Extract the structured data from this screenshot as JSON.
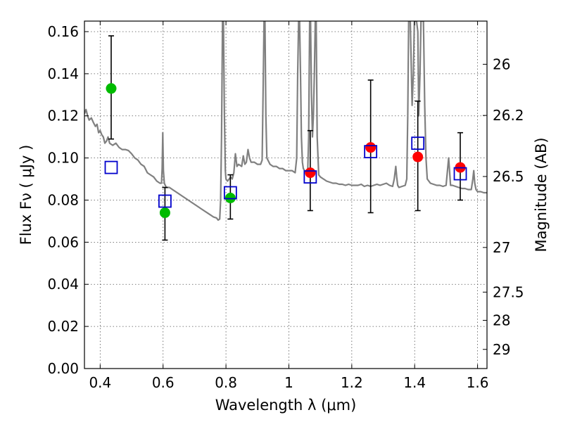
{
  "chart_data": {
    "type": "scatter",
    "xlabel": "Wavelength  λ (μm)",
    "ylabel": "Flux  Fν  ( μJy )",
    "ylabel_right": "Magnitude (AB)",
    "xlim": [
      0.35,
      1.63
    ],
    "ylim": [
      0.0,
      0.165
    ],
    "grid": true,
    "x_ticks": [
      {
        "value": 0.4,
        "label": "0.4"
      },
      {
        "value": 0.6,
        "label": "0.6"
      },
      {
        "value": 0.8,
        "label": "0.8"
      },
      {
        "value": 1.0,
        "label": "1"
      },
      {
        "value": 1.2,
        "label": "1.2"
      },
      {
        "value": 1.4,
        "label": "1.4"
      },
      {
        "value": 1.6,
        "label": "1.6"
      }
    ],
    "y_ticks": [
      {
        "value": 0.0,
        "label": "0.00"
      },
      {
        "value": 0.02,
        "label": "0.02"
      },
      {
        "value": 0.04,
        "label": "0.04"
      },
      {
        "value": 0.06,
        "label": "0.06"
      },
      {
        "value": 0.08,
        "label": "0.08"
      },
      {
        "value": 0.1,
        "label": "0.10"
      },
      {
        "value": 0.12,
        "label": "0.12"
      },
      {
        "value": 0.14,
        "label": "0.14"
      },
      {
        "value": 0.16,
        "label": "0.16"
      }
    ],
    "right_ticks": [
      {
        "flux": 0.1445,
        "label": "26"
      },
      {
        "flux": 0.1202,
        "label": "26.2"
      },
      {
        "flux": 0.0912,
        "label": "26.5"
      },
      {
        "flux": 0.0575,
        "label": "27"
      },
      {
        "flux": 0.0363,
        "label": "27.5"
      },
      {
        "flux": 0.0229,
        "label": "28"
      },
      {
        "flux": 0.0091,
        "label": "29"
      }
    ],
    "series": [
      {
        "marker": "circle",
        "color": "#00bb00",
        "points": [
          {
            "x": 0.435,
            "y": 0.133,
            "ylo": 0.109,
            "yhi": 0.158
          },
          {
            "x": 0.606,
            "y": 0.074,
            "ylo": 0.061,
            "yhi": 0.086
          },
          {
            "x": 0.814,
            "y": 0.081,
            "ylo": 0.071,
            "yhi": 0.092
          }
        ]
      },
      {
        "marker": "circle",
        "color": "#ff0000",
        "points": [
          {
            "x": 1.068,
            "y": 0.093,
            "ylo": 0.075,
            "yhi": 0.113
          },
          {
            "x": 1.26,
            "y": 0.105,
            "ylo": 0.074,
            "yhi": 0.137
          },
          {
            "x": 1.41,
            "y": 0.1005,
            "ylo": 0.075,
            "yhi": 0.127
          },
          {
            "x": 1.545,
            "y": 0.0955,
            "ylo": 0.08,
            "yhi": 0.112
          }
        ]
      },
      {
        "marker": "open-square",
        "color": "#0000cc",
        "points": [
          {
            "x": 0.435,
            "y": 0.0955
          },
          {
            "x": 0.606,
            "y": 0.0795
          },
          {
            "x": 0.814,
            "y": 0.0835
          },
          {
            "x": 1.068,
            "y": 0.091
          },
          {
            "x": 1.26,
            "y": 0.103
          },
          {
            "x": 1.41,
            "y": 0.107
          },
          {
            "x": 1.545,
            "y": 0.0925
          }
        ]
      }
    ],
    "model_spectrum": {
      "color": "#808080",
      "points": [
        [
          0.35,
          0.121
        ],
        [
          0.355,
          0.123
        ],
        [
          0.36,
          0.12
        ],
        [
          0.365,
          0.118
        ],
        [
          0.372,
          0.119
        ],
        [
          0.378,
          0.117
        ],
        [
          0.385,
          0.115
        ],
        [
          0.39,
          0.116
        ],
        [
          0.395,
          0.112
        ],
        [
          0.4,
          0.113
        ],
        [
          0.405,
          0.111
        ],
        [
          0.41,
          0.11
        ],
        [
          0.415,
          0.107
        ],
        [
          0.42,
          0.108
        ],
        [
          0.425,
          0.11
        ],
        [
          0.43,
          0.107
        ],
        [
          0.44,
          0.106
        ],
        [
          0.45,
          0.107
        ],
        [
          0.46,
          0.105
        ],
        [
          0.47,
          0.104
        ],
        [
          0.48,
          0.104
        ],
        [
          0.49,
          0.1035
        ],
        [
          0.5,
          0.102
        ],
        [
          0.51,
          0.1
        ],
        [
          0.52,
          0.099
        ],
        [
          0.53,
          0.097
        ],
        [
          0.54,
          0.096
        ],
        [
          0.55,
          0.093
        ],
        [
          0.56,
          0.092
        ],
        [
          0.57,
          0.091
        ],
        [
          0.58,
          0.089
        ],
        [
          0.59,
          0.088
        ],
        [
          0.595,
          0.088
        ],
        [
          0.597,
          0.095
        ],
        [
          0.599,
          0.112
        ],
        [
          0.601,
          0.094
        ],
        [
          0.604,
          0.088
        ],
        [
          0.61,
          0.086
        ],
        [
          0.62,
          0.086
        ],
        [
          0.63,
          0.085
        ],
        [
          0.64,
          0.084
        ],
        [
          0.65,
          0.083
        ],
        [
          0.66,
          0.082
        ],
        [
          0.67,
          0.081
        ],
        [
          0.68,
          0.08
        ],
        [
          0.69,
          0.079
        ],
        [
          0.7,
          0.078
        ],
        [
          0.71,
          0.077
        ],
        [
          0.72,
          0.076
        ],
        [
          0.73,
          0.075
        ],
        [
          0.74,
          0.074
        ],
        [
          0.75,
          0.073
        ],
        [
          0.76,
          0.072
        ],
        [
          0.77,
          0.0715
        ],
        [
          0.775,
          0.0705
        ],
        [
          0.78,
          0.071
        ],
        [
          0.783,
          0.08
        ],
        [
          0.786,
          0.11
        ],
        [
          0.789,
          0.165
        ],
        [
          0.792,
          0.165
        ],
        [
          0.795,
          0.12
        ],
        [
          0.798,
          0.094
        ],
        [
          0.8,
          0.09
        ],
        [
          0.805,
          0.089
        ],
        [
          0.81,
          0.09
        ],
        [
          0.815,
          0.091
        ],
        [
          0.82,
          0.09
        ],
        [
          0.825,
          0.093
        ],
        [
          0.83,
          0.102
        ],
        [
          0.835,
          0.096
        ],
        [
          0.84,
          0.097
        ],
        [
          0.85,
          0.096
        ],
        [
          0.855,
          0.101
        ],
        [
          0.86,
          0.097
        ],
        [
          0.865,
          0.098
        ],
        [
          0.87,
          0.104
        ],
        [
          0.875,
          0.1
        ],
        [
          0.88,
          0.098
        ],
        [
          0.89,
          0.098
        ],
        [
          0.9,
          0.097
        ],
        [
          0.91,
          0.097
        ],
        [
          0.915,
          0.099
        ],
        [
          0.918,
          0.13
        ],
        [
          0.921,
          0.165
        ],
        [
          0.924,
          0.165
        ],
        [
          0.927,
          0.12
        ],
        [
          0.93,
          0.1
        ],
        [
          0.94,
          0.097
        ],
        [
          0.95,
          0.096
        ],
        [
          0.96,
          0.096
        ],
        [
          0.97,
          0.095
        ],
        [
          0.98,
          0.095
        ],
        [
          0.99,
          0.094
        ],
        [
          1.0,
          0.094
        ],
        [
          1.01,
          0.094
        ],
        [
          1.02,
          0.093
        ],
        [
          1.025,
          0.1
        ],
        [
          1.028,
          0.14
        ],
        [
          1.031,
          0.165
        ],
        [
          1.034,
          0.165
        ],
        [
          1.037,
          0.14
        ],
        [
          1.04,
          0.11
        ],
        [
          1.043,
          0.098
        ],
        [
          1.046,
          0.095
        ],
        [
          1.05,
          0.094
        ],
        [
          1.055,
          0.093
        ],
        [
          1.06,
          0.094
        ],
        [
          1.063,
          0.11
        ],
        [
          1.066,
          0.165
        ],
        [
          1.069,
          0.165
        ],
        [
          1.072,
          0.13
        ],
        [
          1.075,
          0.11
        ],
        [
          1.078,
          0.12
        ],
        [
          1.081,
          0.14
        ],
        [
          1.084,
          0.165
        ],
        [
          1.087,
          0.165
        ],
        [
          1.09,
          0.11
        ],
        [
          1.095,
          0.092
        ],
        [
          1.1,
          0.091
        ],
        [
          1.11,
          0.09
        ],
        [
          1.12,
          0.089
        ],
        [
          1.13,
          0.0885
        ],
        [
          1.14,
          0.088
        ],
        [
          1.15,
          0.088
        ],
        [
          1.16,
          0.0875
        ],
        [
          1.17,
          0.0875
        ],
        [
          1.18,
          0.087
        ],
        [
          1.19,
          0.0875
        ],
        [
          1.2,
          0.087
        ],
        [
          1.21,
          0.087
        ],
        [
          1.22,
          0.087
        ],
        [
          1.23,
          0.0875
        ],
        [
          1.24,
          0.0865
        ],
        [
          1.25,
          0.087
        ],
        [
          1.26,
          0.0865
        ],
        [
          1.27,
          0.087
        ],
        [
          1.28,
          0.0875
        ],
        [
          1.29,
          0.087
        ],
        [
          1.3,
          0.0875
        ],
        [
          1.31,
          0.088
        ],
        [
          1.32,
          0.087
        ],
        [
          1.33,
          0.0865
        ],
        [
          1.335,
          0.09
        ],
        [
          1.34,
          0.096
        ],
        [
          1.343,
          0.091
        ],
        [
          1.346,
          0.087
        ],
        [
          1.35,
          0.086
        ],
        [
          1.36,
          0.0865
        ],
        [
          1.37,
          0.087
        ],
        [
          1.375,
          0.09
        ],
        [
          1.378,
          0.12
        ],
        [
          1.381,
          0.165
        ],
        [
          1.386,
          0.165
        ],
        [
          1.392,
          0.125
        ],
        [
          1.396,
          0.14
        ],
        [
          1.399,
          0.165
        ],
        [
          1.406,
          0.165
        ],
        [
          1.41,
          0.16
        ],
        [
          1.413,
          0.12
        ],
        [
          1.417,
          0.14
        ],
        [
          1.42,
          0.165
        ],
        [
          1.428,
          0.165
        ],
        [
          1.432,
          0.125
        ],
        [
          1.436,
          0.1
        ],
        [
          1.44,
          0.09
        ],
        [
          1.45,
          0.088
        ],
        [
          1.46,
          0.0875
        ],
        [
          1.47,
          0.087
        ],
        [
          1.48,
          0.087
        ],
        [
          1.49,
          0.0865
        ],
        [
          1.5,
          0.087
        ],
        [
          1.505,
          0.095
        ],
        [
          1.508,
          0.1
        ],
        [
          1.511,
          0.094
        ],
        [
          1.514,
          0.087
        ],
        [
          1.52,
          0.087
        ],
        [
          1.53,
          0.0865
        ],
        [
          1.54,
          0.086
        ],
        [
          1.55,
          0.0855
        ],
        [
          1.56,
          0.0855
        ],
        [
          1.57,
          0.085
        ],
        [
          1.58,
          0.085
        ],
        [
          1.585,
          0.09
        ],
        [
          1.588,
          0.094
        ],
        [
          1.591,
          0.088
        ],
        [
          1.595,
          0.085
        ],
        [
          1.6,
          0.084
        ],
        [
          1.61,
          0.084
        ],
        [
          1.62,
          0.0835
        ],
        [
          1.63,
          0.0835
        ]
      ]
    }
  }
}
